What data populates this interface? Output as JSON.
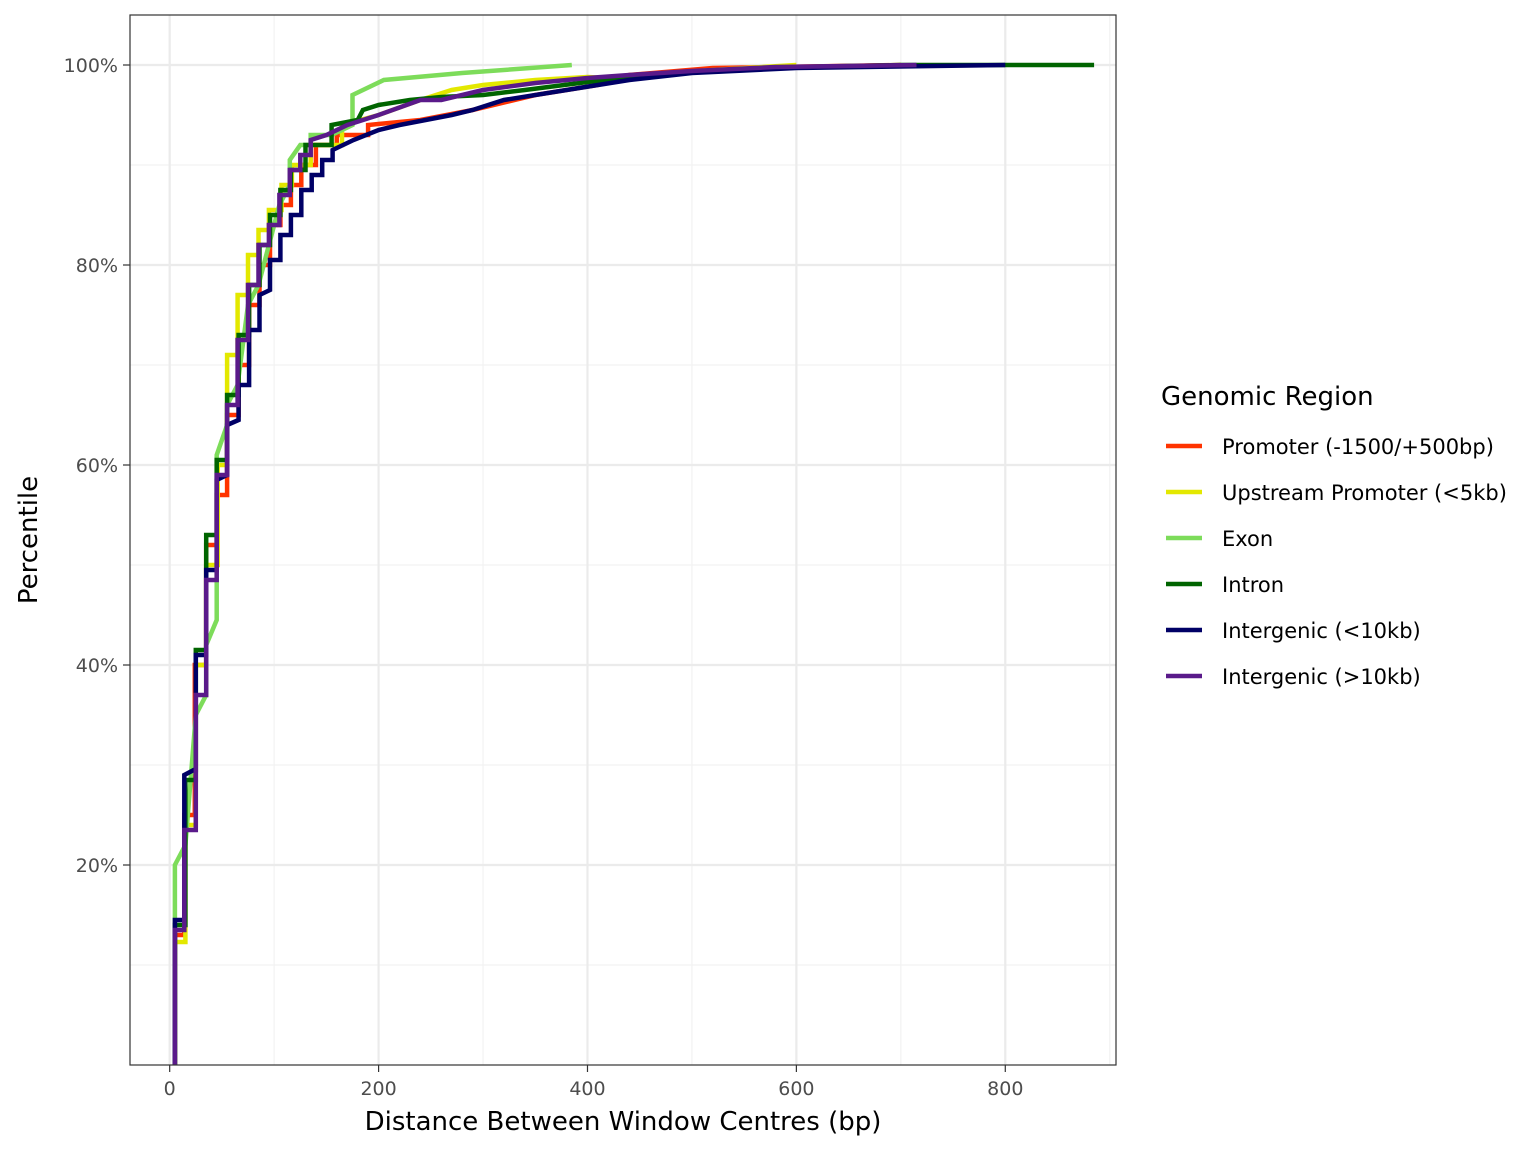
{
  "chart_data": {
    "type": "line",
    "xlabel": "Distance Between Window Centres (bp)",
    "ylabel": "Percentile",
    "xlim": [
      -38,
      906
    ],
    "ylim": [
      0,
      105
    ],
    "x_ticks": [
      0,
      200,
      400,
      600,
      800
    ],
    "x_tick_labels": [
      "0",
      "200",
      "400",
      "600",
      "800"
    ],
    "y_ticks": [
      20,
      40,
      60,
      80,
      100
    ],
    "y_tick_labels": [
      "20%",
      "40%",
      "60%",
      "80%",
      "100%"
    ],
    "grid": true,
    "legend": {
      "title": "Genomic Region",
      "placement": "right"
    },
    "series": [
      {
        "name": "Promoter (-1500/+500bp)",
        "color": "#ff3300",
        "points": [
          [
            5,
            0
          ],
          [
            5,
            13
          ],
          [
            14,
            13
          ],
          [
            14,
            25
          ],
          [
            24,
            25
          ],
          [
            24,
            40
          ],
          [
            35,
            40
          ],
          [
            35,
            52
          ],
          [
            45,
            52
          ],
          [
            45,
            57
          ],
          [
            55,
            57
          ],
          [
            55,
            65
          ],
          [
            66,
            65
          ],
          [
            66,
            70
          ],
          [
            76,
            70
          ],
          [
            76,
            76
          ],
          [
            86,
            76
          ],
          [
            86,
            80
          ],
          [
            96,
            80
          ],
          [
            96,
            84
          ],
          [
            106,
            84
          ],
          [
            106,
            86
          ],
          [
            116,
            86
          ],
          [
            116,
            88
          ],
          [
            126,
            88
          ],
          [
            126,
            90
          ],
          [
            140,
            90
          ],
          [
            140,
            92
          ],
          [
            160,
            92
          ],
          [
            160,
            93
          ],
          [
            190,
            93
          ],
          [
            190,
            94
          ],
          [
            240,
            94.5
          ],
          [
            290,
            95.5
          ],
          [
            350,
            97
          ],
          [
            410,
            98
          ],
          [
            420,
            98.5
          ],
          [
            440,
            99
          ],
          [
            520,
            99.7
          ],
          [
            640,
            99.9
          ],
          [
            700,
            100
          ]
        ]
      },
      {
        "name": "Upstream Promoter (<5kb)",
        "color": "#e3e800",
        "points": [
          [
            5,
            0
          ],
          [
            5,
            12.3
          ],
          [
            15,
            12.3
          ],
          [
            15,
            24
          ],
          [
            25,
            24
          ],
          [
            25,
            40
          ],
          [
            35,
            40
          ],
          [
            35,
            50
          ],
          [
            46,
            50
          ],
          [
            46,
            60
          ],
          [
            55,
            60
          ],
          [
            55,
            71
          ],
          [
            65,
            71
          ],
          [
            65,
            77
          ],
          [
            75,
            77
          ],
          [
            75,
            81
          ],
          [
            85,
            81
          ],
          [
            85,
            83.5
          ],
          [
            95,
            83.5
          ],
          [
            95,
            85.5
          ],
          [
            107,
            85.5
          ],
          [
            107,
            88
          ],
          [
            117,
            88
          ],
          [
            117,
            90
          ],
          [
            135,
            90
          ],
          [
            135,
            92
          ],
          [
            165,
            92
          ],
          [
            165,
            94
          ],
          [
            200,
            95
          ],
          [
            240,
            96.5
          ],
          [
            270,
            97.5
          ],
          [
            300,
            98
          ],
          [
            350,
            98.5
          ],
          [
            400,
            98.8
          ],
          [
            440,
            98.6
          ],
          [
            480,
            99.2
          ],
          [
            520,
            99.5
          ],
          [
            600,
            100
          ]
        ]
      },
      {
        "name": "Exon",
        "color": "#7ddc5a",
        "points": [
          [
            5,
            0
          ],
          [
            5,
            20
          ],
          [
            15,
            22
          ],
          [
            25,
            35
          ],
          [
            35,
            37
          ],
          [
            35,
            42
          ],
          [
            45,
            44.5
          ],
          [
            45,
            61
          ],
          [
            55,
            64
          ],
          [
            55,
            66
          ],
          [
            65,
            68
          ],
          [
            75,
            76
          ],
          [
            85,
            78
          ],
          [
            95,
            82
          ],
          [
            105,
            86
          ],
          [
            115,
            88
          ],
          [
            115,
            90.5
          ],
          [
            125,
            92
          ],
          [
            135,
            92
          ],
          [
            135,
            93
          ],
          [
            155,
            93
          ],
          [
            175,
            94
          ],
          [
            175,
            97
          ],
          [
            205,
            98.5
          ],
          [
            280,
            99.2
          ],
          [
            385,
            100
          ]
        ]
      },
      {
        "name": "Intron",
        "color": "#006400",
        "points": [
          [
            5,
            0
          ],
          [
            5,
            14
          ],
          [
            15,
            14
          ],
          [
            15,
            28.5
          ],
          [
            25,
            28.5
          ],
          [
            25,
            41.5
          ],
          [
            35,
            41.5
          ],
          [
            35,
            53
          ],
          [
            45,
            53
          ],
          [
            45,
            60.5
          ],
          [
            55,
            60.5
          ],
          [
            55,
            67
          ],
          [
            66,
            67
          ],
          [
            66,
            73
          ],
          [
            76,
            73
          ],
          [
            76,
            78
          ],
          [
            86,
            78
          ],
          [
            86,
            82
          ],
          [
            96,
            82
          ],
          [
            96,
            85
          ],
          [
            106,
            85
          ],
          [
            106,
            87.5
          ],
          [
            116,
            87.5
          ],
          [
            116,
            89.5
          ],
          [
            130,
            89.5
          ],
          [
            130,
            92
          ],
          [
            155,
            92
          ],
          [
            155,
            94
          ],
          [
            180,
            94.5
          ],
          [
            185,
            95.5
          ],
          [
            200,
            96
          ],
          [
            230,
            96.5
          ],
          [
            260,
            96.8
          ],
          [
            300,
            97
          ],
          [
            340,
            97.5
          ],
          [
            400,
            98.3
          ],
          [
            500,
            99.3
          ],
          [
            600,
            99.8
          ],
          [
            700,
            100
          ],
          [
            885,
            100
          ]
        ]
      },
      {
        "name": "Intergenic (<10kb)",
        "color": "#000066",
        "points": [
          [
            5,
            0
          ],
          [
            5,
            14.5
          ],
          [
            14,
            14.5
          ],
          [
            14,
            29
          ],
          [
            23,
            29.5
          ],
          [
            25,
            29.5
          ],
          [
            25,
            41
          ],
          [
            35,
            41
          ],
          [
            35,
            49.5
          ],
          [
            45,
            49.5
          ],
          [
            45,
            58.5
          ],
          [
            55,
            59
          ],
          [
            55,
            64
          ],
          [
            66,
            64.5
          ],
          [
            66,
            68
          ],
          [
            76,
            68
          ],
          [
            76,
            73.5
          ],
          [
            86,
            73.5
          ],
          [
            86,
            77
          ],
          [
            96,
            77.5
          ],
          [
            96,
            80.5
          ],
          [
            106,
            80.5
          ],
          [
            106,
            83
          ],
          [
            116,
            83
          ],
          [
            116,
            85
          ],
          [
            126,
            85
          ],
          [
            126,
            87.5
          ],
          [
            136,
            87.5
          ],
          [
            136,
            89
          ],
          [
            146,
            89
          ],
          [
            146,
            90.5
          ],
          [
            156,
            90.5
          ],
          [
            156,
            91.5
          ],
          [
            176,
            92.5
          ],
          [
            200,
            93.5
          ],
          [
            220,
            94
          ],
          [
            270,
            95
          ],
          [
            290,
            95.5
          ],
          [
            320,
            96.5
          ],
          [
            380,
            97.5
          ],
          [
            440,
            98.5
          ],
          [
            500,
            99.2
          ],
          [
            600,
            99.7
          ],
          [
            800,
            100
          ]
        ]
      },
      {
        "name": "Intergenic (>10kb)",
        "color": "#5a1a8a",
        "points": [
          [
            5,
            0
          ],
          [
            5,
            13.5
          ],
          [
            14,
            13.5
          ],
          [
            14,
            23.5
          ],
          [
            25,
            23.5
          ],
          [
            25,
            37
          ],
          [
            35,
            37
          ],
          [
            35,
            48.5
          ],
          [
            45,
            48.5
          ],
          [
            45,
            59
          ],
          [
            55,
            59
          ],
          [
            55,
            66
          ],
          [
            65,
            66
          ],
          [
            65,
            72.5
          ],
          [
            75,
            72.5
          ],
          [
            75,
            78
          ],
          [
            85,
            78
          ],
          [
            85,
            82
          ],
          [
            95,
            82
          ],
          [
            95,
            84
          ],
          [
            105,
            84
          ],
          [
            105,
            87
          ],
          [
            115,
            87
          ],
          [
            115,
            89.5
          ],
          [
            125,
            89.5
          ],
          [
            125,
            91
          ],
          [
            135,
            91
          ],
          [
            135,
            92.5
          ],
          [
            150,
            93
          ],
          [
            170,
            94
          ],
          [
            200,
            95
          ],
          [
            240,
            96.5
          ],
          [
            260,
            96.5
          ],
          [
            300,
            97.5
          ],
          [
            350,
            98.2
          ],
          [
            400,
            98.7
          ],
          [
            440,
            99
          ],
          [
            500,
            99.4
          ],
          [
            580,
            99.8
          ],
          [
            715,
            100
          ]
        ]
      }
    ]
  }
}
